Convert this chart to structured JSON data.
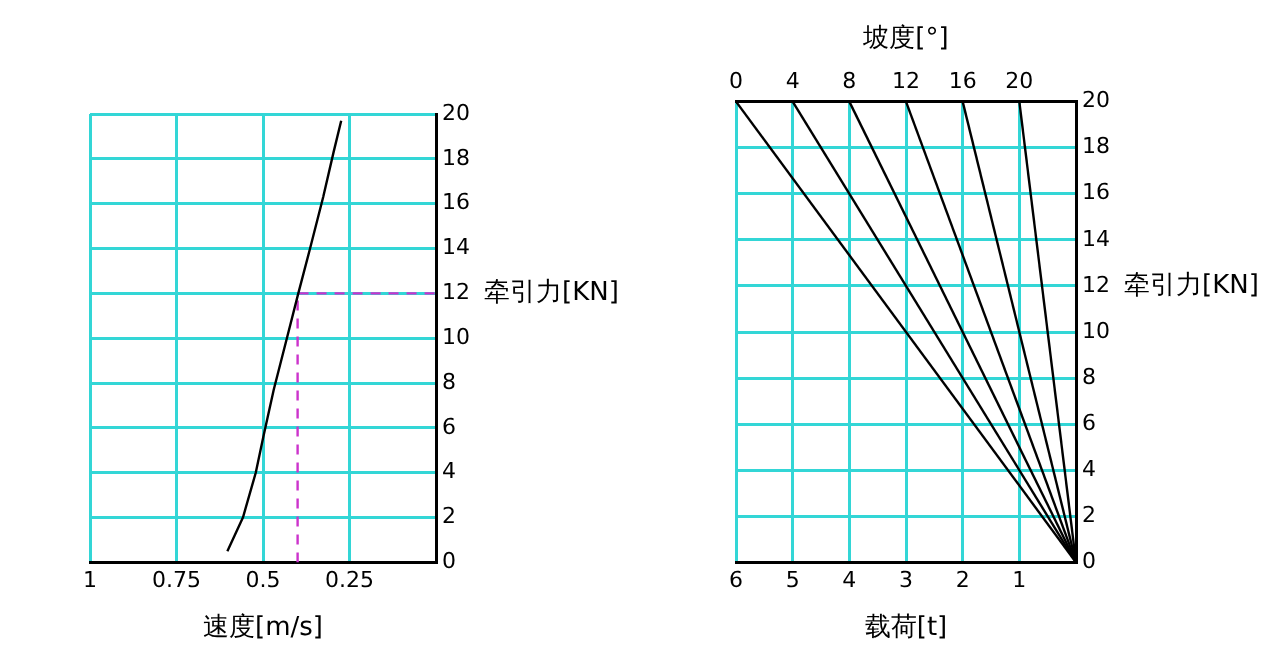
{
  "chart_data": [
    {
      "type": "line",
      "xlabel": "速度[m/s]",
      "ylabel": "牵引力[KN]",
      "xlim": [
        1,
        0
      ],
      "xticks": [
        1,
        0.75,
        0.5,
        0.25
      ],
      "ylim": [
        0,
        20
      ],
      "yticks": [
        0,
        2,
        4,
        6,
        8,
        10,
        12,
        14,
        16,
        18,
        20
      ],
      "grid": true,
      "marker": "none",
      "series": [
        {
          "color": "#000000",
          "x": [
            0.603,
            0.558,
            0.521,
            0.499,
            0.469,
            0.431,
            0.398,
            0.364,
            0.326,
            0.296,
            0.274
          ],
          "values": [
            0.5,
            2,
            4,
            5.6,
            7.7,
            10,
            12,
            14,
            16.3,
            18.3,
            19.7
          ]
        },
        {
          "color": "#cc33cc",
          "line_style": "dashed",
          "x": [
            0.4,
            0.4,
            0
          ],
          "values": [
            0,
            12,
            12
          ]
        }
      ]
    },
    {
      "type": "line",
      "xlabel": "载荷[t]",
      "x2label": "坡度[°]",
      "ylabel": "牵引力[KN]",
      "xlim": [
        6,
        0
      ],
      "xticks": [
        6,
        5,
        4,
        3,
        2,
        1
      ],
      "x2lim": [
        0,
        24
      ],
      "x2ticks": [
        0,
        4,
        8,
        12,
        16,
        20
      ],
      "ylim": [
        0,
        20
      ],
      "yticks": [
        0,
        2,
        4,
        6,
        8,
        10,
        12,
        14,
        16,
        18,
        20
      ],
      "grid": true,
      "marker": "none",
      "series": [
        {
          "color": "#000000",
          "x": [
            6,
            0
          ],
          "values": [
            20,
            0
          ]
        },
        {
          "color": "#000000",
          "x": [
            5,
            0
          ],
          "values": [
            20,
            0
          ]
        },
        {
          "color": "#000000",
          "x": [
            4,
            0
          ],
          "values": [
            20,
            0
          ]
        },
        {
          "color": "#000000",
          "x": [
            3,
            0
          ],
          "values": [
            20,
            0
          ]
        },
        {
          "color": "#000000",
          "x": [
            2,
            0
          ],
          "values": [
            20,
            0
          ]
        },
        {
          "color": "#000000",
          "x": [
            1,
            0
          ],
          "values": [
            20,
            0
          ]
        }
      ]
    }
  ]
}
